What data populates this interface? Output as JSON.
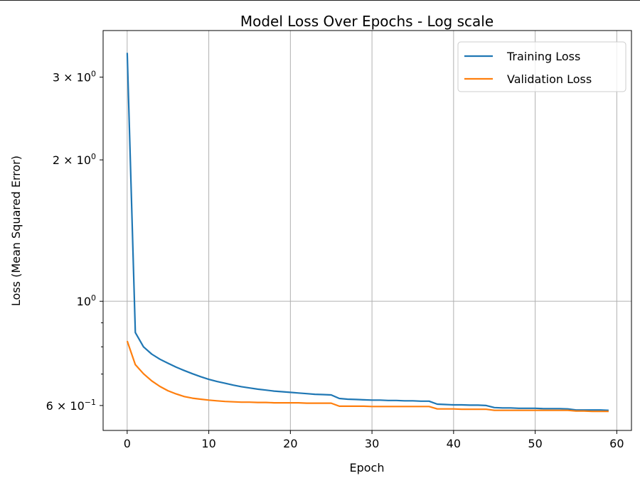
{
  "chart_data": {
    "type": "line",
    "title": "Model Loss Over Epochs - Log scale",
    "xlabel": "Epoch",
    "ylabel": "Loss (Mean Squared Error)",
    "xlim": [
      -2.95,
      61.8
    ],
    "ylim": [
      0.531,
      3.77
    ],
    "yscale": "log",
    "grid": true,
    "legend": "top-right",
    "xticks": [
      0,
      10,
      20,
      30,
      40,
      50,
      60
    ],
    "xtick_labels": [
      "0",
      "10",
      "20",
      "30",
      "40",
      "50",
      "60"
    ],
    "yticks": [
      {
        "value": 3,
        "mantissa": "3 × 10",
        "exp": "0"
      },
      {
        "value": 2,
        "mantissa": "2 × 10",
        "exp": "0"
      },
      {
        "value": 1,
        "mantissa": "10",
        "exp": "0"
      },
      {
        "value": 0.6,
        "mantissa": "6 × 10",
        "exp": "−1"
      }
    ],
    "yminor_ticks": [
      0.7,
      0.8,
      0.9
    ],
    "x": [
      0,
      1,
      2,
      3,
      4,
      5,
      6,
      7,
      8,
      9,
      10,
      11,
      12,
      13,
      14,
      15,
      16,
      17,
      18,
      19,
      20,
      21,
      22,
      23,
      24,
      25,
      26,
      27,
      28,
      29,
      30,
      31,
      32,
      33,
      34,
      35,
      36,
      37,
      38,
      39,
      40,
      41,
      42,
      43,
      44,
      45,
      46,
      47,
      48,
      49,
      50,
      51,
      52,
      53,
      54,
      55,
      56,
      57,
      58,
      59
    ],
    "series": [
      {
        "name": "Training Loss",
        "color": "#1f77b4",
        "values": [
          3.38,
          0.858,
          0.8,
          0.772,
          0.753,
          0.738,
          0.724,
          0.712,
          0.701,
          0.691,
          0.682,
          0.675,
          0.669,
          0.663,
          0.658,
          0.654,
          0.65,
          0.647,
          0.644,
          0.642,
          0.64,
          0.638,
          0.636,
          0.634,
          0.633,
          0.632,
          0.621,
          0.619,
          0.618,
          0.617,
          0.616,
          0.616,
          0.615,
          0.615,
          0.614,
          0.614,
          0.613,
          0.613,
          0.604,
          0.603,
          0.602,
          0.602,
          0.601,
          0.601,
          0.6,
          0.594,
          0.593,
          0.593,
          0.592,
          0.592,
          0.592,
          0.591,
          0.591,
          0.591,
          0.59,
          0.587,
          0.587,
          0.587,
          0.587,
          0.586
        ]
      },
      {
        "name": "Validation Loss",
        "color": "#ff7f0e",
        "values": [
          0.823,
          0.733,
          0.701,
          0.677,
          0.659,
          0.645,
          0.635,
          0.627,
          0.622,
          0.619,
          0.616,
          0.614,
          0.612,
          0.611,
          0.61,
          0.61,
          0.609,
          0.609,
          0.608,
          0.608,
          0.608,
          0.608,
          0.607,
          0.607,
          0.607,
          0.607,
          0.598,
          0.598,
          0.598,
          0.598,
          0.597,
          0.597,
          0.597,
          0.597,
          0.597,
          0.597,
          0.597,
          0.597,
          0.59,
          0.59,
          0.59,
          0.589,
          0.589,
          0.589,
          0.589,
          0.586,
          0.586,
          0.586,
          0.586,
          0.586,
          0.586,
          0.586,
          0.586,
          0.586,
          0.586,
          0.584,
          0.584,
          0.583,
          0.583,
          0.583
        ]
      }
    ]
  }
}
